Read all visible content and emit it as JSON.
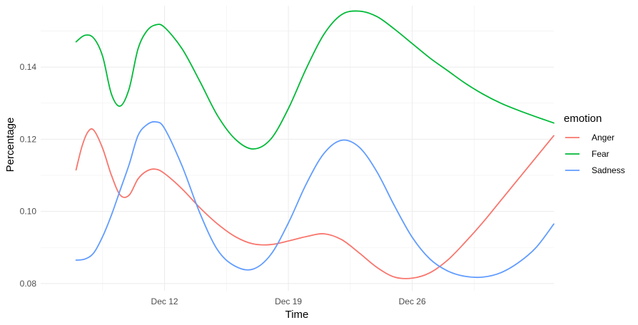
{
  "chart_data": {
    "type": "line",
    "title": "",
    "xlabel": "Time",
    "ylabel": "Percentage",
    "x_axis": {
      "type": "date",
      "range": [
        "2023-12-05",
        "2024-01-03"
      ],
      "ticks": [
        {
          "date": "2023-12-12",
          "label": "Dec 12"
        },
        {
          "date": "2023-12-19",
          "label": "Dec 19"
        },
        {
          "date": "2023-12-26",
          "label": "Dec 26"
        }
      ]
    },
    "y_axis": {
      "range": [
        0.078,
        0.157
      ],
      "ticks": [
        {
          "value": 0.08,
          "label": "0.08"
        },
        {
          "value": 0.1,
          "label": "0.10"
        },
        {
          "value": 0.12,
          "label": "0.12"
        },
        {
          "value": 0.14,
          "label": "0.14"
        }
      ]
    },
    "grid": true,
    "legend": {
      "title": "emotion",
      "position": "right"
    },
    "series": [
      {
        "name": "Anger",
        "color": "#F8766D",
        "points": [
          [
            "2023-12-07",
            0.1115
          ],
          [
            "2023-12-07T08:00",
            0.118
          ],
          [
            "2023-12-07T16:00",
            0.122
          ],
          [
            "2023-12-08",
            0.1225
          ],
          [
            "2023-12-08T12:00",
            0.1175
          ],
          [
            "2023-12-09",
            0.11
          ],
          [
            "2023-12-09T12:00",
            0.1045
          ],
          [
            "2023-12-10",
            0.1045
          ],
          [
            "2023-12-10T12:00",
            0.109
          ],
          [
            "2023-12-11",
            0.1112
          ],
          [
            "2023-12-11T12:00",
            0.1117
          ],
          [
            "2023-12-12",
            0.1105
          ],
          [
            "2023-12-13",
            0.1062
          ],
          [
            "2023-12-14",
            0.101
          ],
          [
            "2023-12-15",
            0.0965
          ],
          [
            "2023-12-16",
            0.093
          ],
          [
            "2023-12-17",
            0.091
          ],
          [
            "2023-12-18",
            0.0908
          ],
          [
            "2023-12-19",
            0.0918
          ],
          [
            "2023-12-20",
            0.093
          ],
          [
            "2023-12-21",
            0.0938
          ],
          [
            "2023-12-22",
            0.0922
          ],
          [
            "2023-12-23",
            0.0885
          ],
          [
            "2023-12-24",
            0.0845
          ],
          [
            "2023-12-25",
            0.0818
          ],
          [
            "2023-12-26",
            0.0815
          ],
          [
            "2023-12-27",
            0.083
          ],
          [
            "2023-12-28",
            0.0865
          ],
          [
            "2023-12-29",
            0.0915
          ],
          [
            "2023-12-30",
            0.097
          ],
          [
            "2023-12-31",
            0.103
          ],
          [
            "2024-01-01",
            0.109
          ],
          [
            "2024-01-02",
            0.115
          ],
          [
            "2024-01-03",
            0.121
          ]
        ]
      },
      {
        "name": "Fear",
        "color": "#00BA38",
        "points": [
          [
            "2023-12-07",
            0.147
          ],
          [
            "2023-12-07T12:00",
            0.1488
          ],
          [
            "2023-12-08",
            0.148
          ],
          [
            "2023-12-08T12:00",
            0.143
          ],
          [
            "2023-12-09",
            0.1325
          ],
          [
            "2023-12-09T12:00",
            0.1292
          ],
          [
            "2023-12-10",
            0.134
          ],
          [
            "2023-12-10T12:00",
            0.145
          ],
          [
            "2023-12-11",
            0.15
          ],
          [
            "2023-12-11T12:00",
            0.1517
          ],
          [
            "2023-12-12",
            0.151
          ],
          [
            "2023-12-13",
            0.145
          ],
          [
            "2023-12-14",
            0.136
          ],
          [
            "2023-12-15",
            0.1265
          ],
          [
            "2023-12-16",
            0.12
          ],
          [
            "2023-12-17",
            0.1173
          ],
          [
            "2023-12-18",
            0.12
          ],
          [
            "2023-12-19",
            0.1285
          ],
          [
            "2023-12-20",
            0.1395
          ],
          [
            "2023-12-21",
            0.149
          ],
          [
            "2023-12-22",
            0.1545
          ],
          [
            "2023-12-23",
            0.1555
          ],
          [
            "2023-12-24",
            0.154
          ],
          [
            "2023-12-25",
            0.1505
          ],
          [
            "2023-12-26",
            0.1465
          ],
          [
            "2023-12-27",
            0.1425
          ],
          [
            "2023-12-28",
            0.139
          ],
          [
            "2023-12-29",
            0.1355
          ],
          [
            "2023-12-30",
            0.1325
          ],
          [
            "2023-12-31",
            0.13
          ],
          [
            "2024-01-01",
            0.128
          ],
          [
            "2024-01-02",
            0.1262
          ],
          [
            "2024-01-03",
            0.1245
          ]
        ]
      },
      {
        "name": "Sadness",
        "color": "#619CFF",
        "points": [
          [
            "2023-12-07",
            0.0865
          ],
          [
            "2023-12-07T12:00",
            0.0868
          ],
          [
            "2023-12-08",
            0.0885
          ],
          [
            "2023-12-08T12:00",
            0.093
          ],
          [
            "2023-12-09",
            0.099
          ],
          [
            "2023-12-09T12:00",
            0.106
          ],
          [
            "2023-12-10",
            0.113
          ],
          [
            "2023-12-10T12:00",
            0.121
          ],
          [
            "2023-12-11",
            0.124
          ],
          [
            "2023-12-11T12:00",
            0.1248
          ],
          [
            "2023-12-12",
            0.123
          ],
          [
            "2023-12-13",
            0.1125
          ],
          [
            "2023-12-14",
            0.0995
          ],
          [
            "2023-12-15",
            0.0893
          ],
          [
            "2023-12-16",
            0.0848
          ],
          [
            "2023-12-17",
            0.084
          ],
          [
            "2023-12-18",
            0.088
          ],
          [
            "2023-12-19",
            0.0968
          ],
          [
            "2023-12-20",
            0.1075
          ],
          [
            "2023-12-21",
            0.116
          ],
          [
            "2023-12-22",
            0.1197
          ],
          [
            "2023-12-23",
            0.1178
          ],
          [
            "2023-12-24",
            0.111
          ],
          [
            "2023-12-25",
            0.1015
          ],
          [
            "2023-12-26",
            0.0928
          ],
          [
            "2023-12-27",
            0.0868
          ],
          [
            "2023-12-28",
            0.0835
          ],
          [
            "2023-12-29",
            0.082
          ],
          [
            "2023-12-30",
            0.0818
          ],
          [
            "2023-12-31",
            0.083
          ],
          [
            "2024-01-01",
            0.0858
          ],
          [
            "2024-01-02",
            0.09
          ],
          [
            "2024-01-03",
            0.0965
          ]
        ]
      }
    ]
  }
}
